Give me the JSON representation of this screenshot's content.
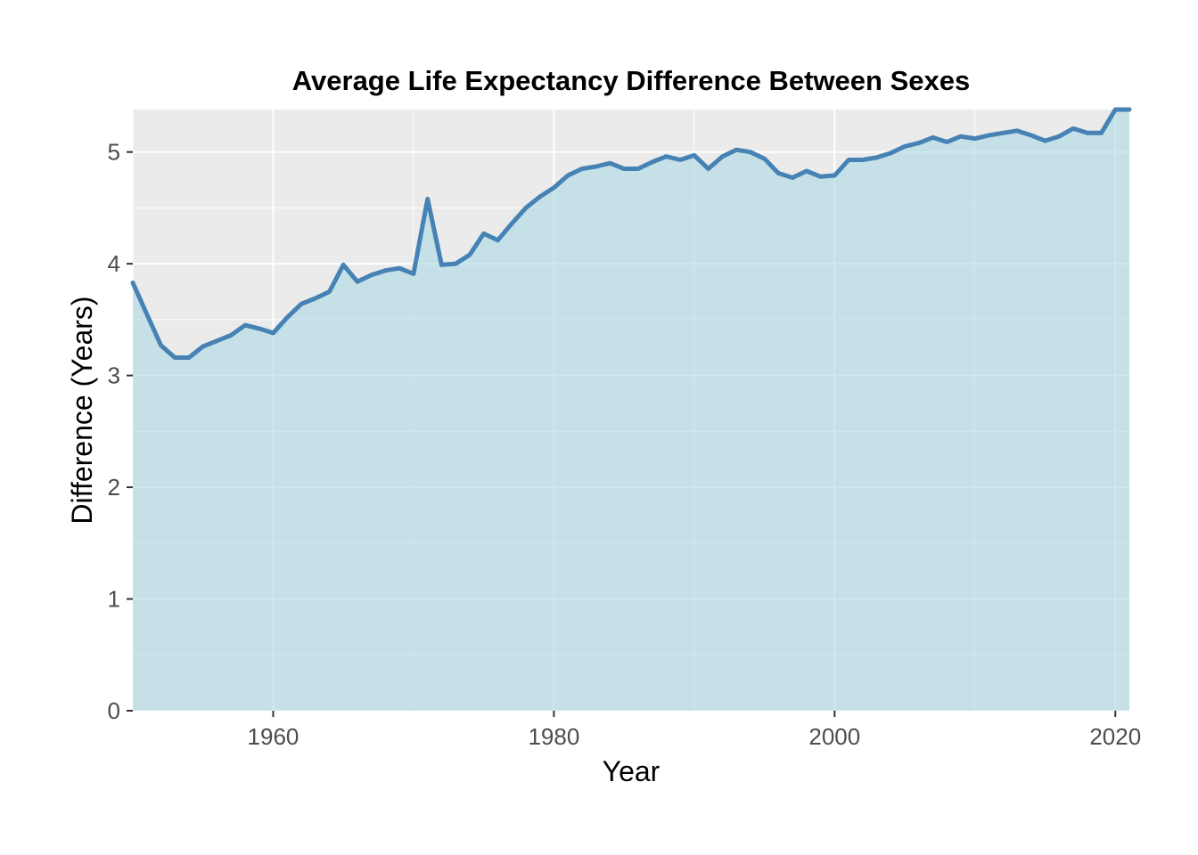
{
  "chart_data": {
    "type": "area",
    "title": "Average Life Expectancy Difference Between Sexes",
    "xlabel": "Year",
    "ylabel": "Difference (Years)",
    "xlim": [
      1950,
      2021
    ],
    "ylim": [
      0,
      5.38
    ],
    "x_ticks": [
      1960,
      1980,
      2000,
      2020
    ],
    "y_ticks": [
      0,
      1,
      2,
      3,
      4,
      5
    ],
    "grid": true,
    "legend": "none",
    "colors": {
      "panel_background": "#ebebeb",
      "grid_line": "#ffffff",
      "area_fill": "#add8e6",
      "line": "#4682b4"
    },
    "series": [
      {
        "x": [
          1950,
          1951,
          1952,
          1953,
          1954,
          1955,
          1956,
          1957,
          1958,
          1959,
          1960,
          1961,
          1962,
          1963,
          1964,
          1965,
          1966,
          1967,
          1968,
          1969,
          1970,
          1971,
          1972,
          1973,
          1974,
          1975,
          1976,
          1977,
          1978,
          1979,
          1980,
          1981,
          1982,
          1983,
          1984,
          1985,
          1986,
          1987,
          1988,
          1989,
          1990,
          1991,
          1992,
          1993,
          1994,
          1995,
          1996,
          1997,
          1998,
          1999,
          2000,
          2001,
          2002,
          2003,
          2004,
          2005,
          2006,
          2007,
          2008,
          2009,
          2010,
          2011,
          2012,
          2013,
          2014,
          2015,
          2016,
          2017,
          2018,
          2019,
          2020,
          2021
        ],
        "values": [
          3.83,
          3.55,
          3.27,
          3.16,
          3.16,
          3.26,
          3.31,
          3.36,
          3.45,
          3.42,
          3.38,
          3.52,
          3.64,
          3.69,
          3.75,
          3.99,
          3.84,
          3.9,
          3.94,
          3.96,
          3.91,
          4.58,
          3.99,
          4.0,
          4.08,
          4.27,
          4.21,
          4.36,
          4.5,
          4.6,
          4.68,
          4.79,
          4.85,
          4.87,
          4.9,
          4.85,
          4.85,
          4.91,
          4.96,
          4.93,
          4.97,
          4.85,
          4.96,
          5.02,
          5.0,
          4.94,
          4.81,
          4.77,
          4.83,
          4.78,
          4.79,
          4.93,
          4.93,
          4.95,
          4.99,
          5.05,
          5.08,
          5.13,
          5.09,
          5.14,
          5.12,
          5.15,
          5.17,
          5.19,
          5.15,
          5.1,
          5.14,
          5.21,
          5.17,
          5.17,
          5.38,
          5.38
        ]
      }
    ]
  }
}
